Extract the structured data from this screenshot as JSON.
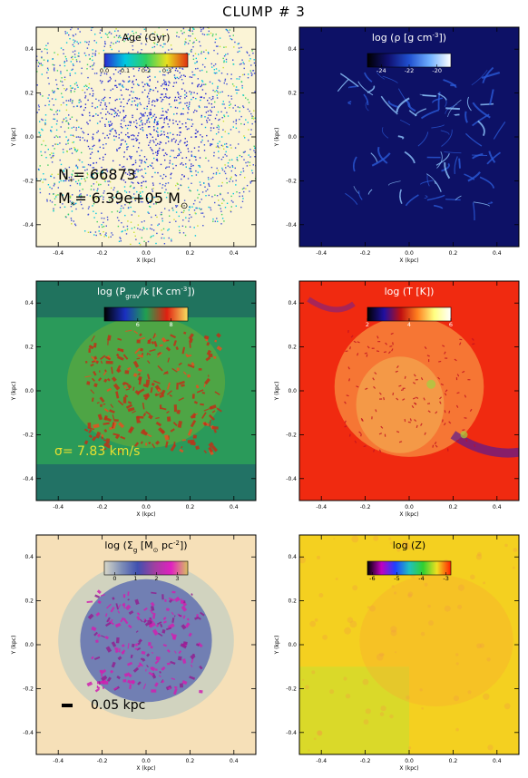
{
  "figure": {
    "title": "CLUMP # 3"
  },
  "chart_data": [
    {
      "type": "heatmap",
      "id": "age",
      "title": "Age (Gyr)",
      "title_color": "#000000",
      "background": "#fbf4d6",
      "xlabel": "X (kpc)",
      "ylabel": "Y (kpc)",
      "xlim": [
        -0.5,
        0.5
      ],
      "ylim": [
        -0.5,
        0.5
      ],
      "xticks": [
        "-0.4",
        "-0.2",
        "0.0",
        "0.2",
        "0.4"
      ],
      "yticks": [
        "-0.4",
        "-0.2",
        "0.0",
        "0.2",
        "0.4"
      ],
      "colorbar": {
        "range": [
          0.0,
          0.4
        ],
        "ticks": [
          "0.0",
          "0.1",
          "0.2",
          "0.3"
        ],
        "colors": [
          "#2a2ad0",
          "#00c8e0",
          "#30d060",
          "#e8e020",
          "#e03010"
        ]
      },
      "annotations": [
        "N",
        "*",
        "= 66873",
        "M",
        "*",
        "= 6.39e+05 M",
        "⊙"
      ]
    },
    {
      "type": "heatmap",
      "id": "density",
      "title": "log (ρ [g cm",
      "title_sup": "-3",
      "title_end": "])",
      "title_color": "#ffffff",
      "background": "#0d1166",
      "xlabel": "X (kpc)",
      "ylabel": "Y (kpc)",
      "xlim": [
        -0.5,
        0.5
      ],
      "ylim": [
        -0.5,
        0.5
      ],
      "xticks": [
        "-0.4",
        "-0.2",
        "0.0",
        "0.2",
        "0.4"
      ],
      "yticks": [
        "-0.4",
        "-0.2",
        "0.0",
        "0.2",
        "0.4"
      ],
      "colorbar": {
        "range": [
          -25,
          -19
        ],
        "ticks": [
          "-24",
          "-22",
          "-20"
        ],
        "colors": [
          "#000000",
          "#101070",
          "#2050d0",
          "#70b0ff",
          "#ffffff"
        ]
      }
    },
    {
      "type": "heatmap",
      "id": "pressure",
      "title": "log (P",
      "title_sub": "grav",
      "title_mid": "/k [K cm",
      "title_sup": "-3",
      "title_end": "])",
      "title_color": "#ffffff",
      "background": "#2a9a5a",
      "xlabel": "X (kpc)",
      "ylabel": "Y (kpc)",
      "xlim": [
        -0.5,
        0.5
      ],
      "ylim": [
        -0.5,
        0.5
      ],
      "xticks": [
        "-0.4",
        "-0.2",
        "0.0",
        "0.2",
        "0.4"
      ],
      "yticks": [
        "-0.4",
        "-0.2",
        "0.0",
        "0.2",
        "0.4"
      ],
      "colorbar": {
        "range": [
          4,
          9
        ],
        "ticks": [
          "6",
          "8"
        ],
        "colors": [
          "#000000",
          "#1a30c0",
          "#20a050",
          "#e02010",
          "#f8e060"
        ]
      },
      "annotations": [
        "σ",
        "= 7.83 km/s"
      ]
    },
    {
      "type": "heatmap",
      "id": "temperature",
      "title": "log (T [K])",
      "title_color": "#ffffff",
      "background": "#f02a10",
      "xlabel": "X (kpc)",
      "ylabel": "Y (kpc)",
      "xlim": [
        -0.5,
        0.5
      ],
      "ylim": [
        -0.5,
        0.5
      ],
      "xticks": [
        "-0.4",
        "-0.2",
        "0.0",
        "0.2",
        "0.4"
      ],
      "yticks": [
        "-0.4",
        "-0.2",
        "0.0",
        "0.2",
        "0.4"
      ],
      "colorbar": {
        "range": [
          2,
          6
        ],
        "ticks": [
          "2",
          "4",
          "6"
        ],
        "colors": [
          "#000000",
          "#2010a0",
          "#c01010",
          "#ff8020",
          "#ffff80",
          "#ffffff"
        ]
      }
    },
    {
      "type": "heatmap",
      "id": "surface_density",
      "title": "log (Σ",
      "title_sub": "g",
      "title_mid": " [M",
      "title_sub2": "⊙",
      "title_mid2": " pc",
      "title_sup": "-2",
      "title_end": "])",
      "title_color": "#000000",
      "background": "#f6e0b8",
      "xlabel": "X (kpc)",
      "ylabel": "Y (kpc)",
      "xlim": [
        -0.5,
        0.5
      ],
      "ylim": [
        -0.5,
        0.5
      ],
      "xticks": [
        "-0.4",
        "-0.2",
        "0.0",
        "0.2",
        "0.4"
      ],
      "yticks": [
        "-0.4",
        "-0.2",
        "0.0",
        "0.2",
        "0.4"
      ],
      "colorbar": {
        "range": [
          -0.5,
          3.5
        ],
        "ticks": [
          "0",
          "1",
          "2",
          "3"
        ],
        "colors": [
          "#d8d8c8",
          "#8090b8",
          "#4050b0",
          "#a040a0",
          "#e020c0",
          "#d8c060"
        ]
      },
      "annotations": [
        "0.05 kpc"
      ]
    },
    {
      "type": "heatmap",
      "id": "metallicity",
      "title": "log (Z)",
      "title_color": "#000000",
      "background": "#f4d020",
      "xlabel": "X (kpc)",
      "ylabel": "Y (kpc)",
      "xlim": [
        -0.5,
        0.5
      ],
      "ylim": [
        -0.5,
        0.5
      ],
      "xticks": [
        "-0.4",
        "-0.2",
        "0.0",
        "0.2",
        "0.4"
      ],
      "yticks": [
        "-0.4",
        "-0.2",
        "0.0",
        "0.2",
        "0.4"
      ],
      "colorbar": {
        "range": [
          -6.2,
          -2.8
        ],
        "ticks": [
          "-6",
          "-5",
          "-4",
          "-3"
        ],
        "colors": [
          "#000000",
          "#c000c0",
          "#2040ff",
          "#20c0c0",
          "#30d030",
          "#f0e020",
          "#ff2000"
        ]
      }
    }
  ]
}
